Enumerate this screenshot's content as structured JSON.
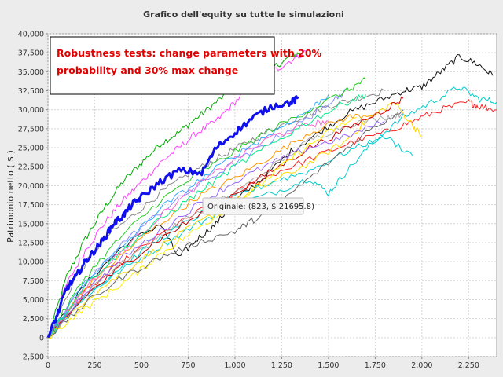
{
  "chart_data": {
    "type": "line",
    "title": "Grafico dell'equity su tutte le simulazioni",
    "xlabel": "",
    "ylabel": "Patrimonio netto ( $ )",
    "xlim": [
      0,
      2400
    ],
    "ylim": [
      -2500,
      40000
    ],
    "x_ticks": [
      0,
      250,
      500,
      750,
      1000,
      1250,
      1500,
      1750,
      2000,
      2250
    ],
    "x_tick_labels": [
      "0",
      "250",
      "500",
      "750",
      "1,000",
      "1,250",
      "1,500",
      "1,750",
      "2,000",
      "2,250"
    ],
    "y_ticks": [
      -2500,
      0,
      2500,
      5000,
      7500,
      10000,
      12500,
      15000,
      17500,
      20000,
      22500,
      25000,
      27500,
      30000,
      32500,
      35000,
      37500,
      40000
    ],
    "y_tick_labels": [
      "-2,500",
      "0",
      "2,500",
      "5,000",
      "7,500",
      "10,000",
      "12,500",
      "15,000",
      "17,500",
      "20,000",
      "22,500",
      "25,000",
      "27,500",
      "30,000",
      "32,500",
      "35,000",
      "37,500",
      "40,000"
    ],
    "grid": true,
    "annotation": {
      "lines": [
        "Robustness tests: change parameters with 20%",
        "probability and 30% max change"
      ],
      "color": "#e00000"
    },
    "tooltip": {
      "text": "Originale: (823, $ 21695.8)",
      "x": 823,
      "y": 21695.8
    },
    "series": [
      {
        "color": "#1010ee",
        "width": 3,
        "values": [
          [
            0,
            0
          ],
          [
            50,
            3000
          ],
          [
            100,
            6500
          ],
          [
            150,
            8000
          ],
          [
            200,
            10000
          ],
          [
            250,
            11500
          ],
          [
            300,
            13000
          ],
          [
            350,
            15000
          ],
          [
            400,
            16000
          ],
          [
            450,
            17500
          ],
          [
            500,
            18500
          ],
          [
            600,
            20500
          ],
          [
            700,
            22000
          ],
          [
            823,
            21695.8
          ],
          [
            900,
            25000
          ],
          [
            1000,
            27000
          ],
          [
            1100,
            29000
          ],
          [
            1200,
            30500
          ],
          [
            1300,
            31000
          ],
          [
            1340,
            31500
          ]
        ]
      },
      {
        "color": "#00aa00",
        "width": 1,
        "values": [
          [
            0,
            0
          ],
          [
            100,
            8000
          ],
          [
            200,
            13000
          ],
          [
            300,
            17000
          ],
          [
            400,
            20500
          ],
          [
            500,
            23000
          ],
          [
            600,
            25500
          ],
          [
            700,
            27000
          ],
          [
            800,
            29000
          ],
          [
            900,
            31000
          ],
          [
            1000,
            33000
          ],
          [
            1100,
            34500
          ],
          [
            1200,
            35500
          ],
          [
            1300,
            37000
          ],
          [
            1350,
            37500
          ]
        ]
      },
      {
        "color": "#ff44ff",
        "width": 1,
        "values": [
          [
            0,
            0
          ],
          [
            100,
            7000
          ],
          [
            200,
            11500
          ],
          [
            300,
            15000
          ],
          [
            400,
            18000
          ],
          [
            500,
            20500
          ],
          [
            600,
            23000
          ],
          [
            700,
            25000
          ],
          [
            800,
            27000
          ],
          [
            900,
            28500
          ],
          [
            1000,
            31000
          ],
          [
            1100,
            33500
          ],
          [
            1200,
            35000
          ],
          [
            1300,
            36500
          ],
          [
            1400,
            38000
          ]
        ]
      },
      {
        "color": "#888888",
        "width": 1,
        "values": [
          [
            0,
            0
          ],
          [
            150,
            8000
          ],
          [
            300,
            13000
          ],
          [
            450,
            16000
          ],
          [
            600,
            19000
          ],
          [
            750,
            21500
          ],
          [
            900,
            23500
          ],
          [
            1050,
            25500
          ],
          [
            1200,
            27500
          ],
          [
            1350,
            29000
          ],
          [
            1500,
            30500
          ],
          [
            1650,
            31500
          ],
          [
            1800,
            32500
          ]
        ]
      },
      {
        "color": "#111111",
        "width": 1,
        "values": [
          [
            0,
            0
          ],
          [
            200,
            7000
          ],
          [
            400,
            12000
          ],
          [
            600,
            15000
          ],
          [
            700,
            10500
          ],
          [
            800,
            13000
          ],
          [
            900,
            15000
          ],
          [
            1000,
            18000
          ],
          [
            1150,
            21000
          ],
          [
            1300,
            24500
          ],
          [
            1450,
            27000
          ],
          [
            1600,
            29500
          ],
          [
            1750,
            31000
          ],
          [
            1900,
            32500
          ],
          [
            2000,
            33000
          ],
          [
            2100,
            35000
          ],
          [
            2200,
            37000
          ],
          [
            2300,
            36000
          ],
          [
            2380,
            34500
          ]
        ]
      },
      {
        "color": "#ff2222",
        "width": 1,
        "values": [
          [
            0,
            0
          ],
          [
            200,
            6000
          ],
          [
            400,
            10000
          ],
          [
            600,
            13500
          ],
          [
            800,
            16500
          ],
          [
            1000,
            19000
          ],
          [
            1200,
            21500
          ],
          [
            1400,
            23500
          ],
          [
            1600,
            25500
          ],
          [
            1800,
            27000
          ],
          [
            1950,
            28500
          ],
          [
            2100,
            30000
          ],
          [
            2250,
            31000
          ],
          [
            2300,
            30500
          ],
          [
            2400,
            30000
          ]
        ]
      },
      {
        "color": "#00cccc",
        "width": 1,
        "values": [
          [
            0,
            0
          ],
          [
            200,
            5500
          ],
          [
            400,
            9000
          ],
          [
            600,
            12000
          ],
          [
            800,
            15000
          ],
          [
            1000,
            17500
          ],
          [
            1200,
            19000
          ],
          [
            1400,
            21000
          ],
          [
            1500,
            19000
          ],
          [
            1600,
            22000
          ],
          [
            1750,
            26000
          ],
          [
            1900,
            29000
          ],
          [
            2050,
            31000
          ],
          [
            2200,
            33000
          ],
          [
            2300,
            31500
          ],
          [
            2400,
            31000
          ]
        ]
      },
      {
        "color": "#ffd800",
        "width": 1,
        "values": [
          [
            0,
            0
          ],
          [
            200,
            5000
          ],
          [
            400,
            8500
          ],
          [
            600,
            12000
          ],
          [
            800,
            15000
          ],
          [
            1000,
            18000
          ],
          [
            1200,
            20500
          ],
          [
            1400,
            23000
          ],
          [
            1600,
            26000
          ],
          [
            1700,
            28500
          ],
          [
            1850,
            31000
          ],
          [
            1950,
            28000
          ],
          [
            2000,
            26500
          ]
        ]
      },
      {
        "color": "#ff9900",
        "width": 1,
        "values": [
          [
            0,
            0
          ],
          [
            200,
            6500
          ],
          [
            400,
            11000
          ],
          [
            600,
            15000
          ],
          [
            800,
            18500
          ],
          [
            1000,
            21000
          ],
          [
            1200,
            24000
          ],
          [
            1400,
            27000
          ],
          [
            1600,
            29000
          ],
          [
            1750,
            29500
          ]
        ]
      },
      {
        "color": "#8888ff",
        "width": 1,
        "values": [
          [
            0,
            0
          ],
          [
            200,
            7000
          ],
          [
            400,
            12500
          ],
          [
            600,
            16500
          ],
          [
            800,
            20000
          ],
          [
            1000,
            23000
          ],
          [
            1200,
            26000
          ],
          [
            1400,
            29000
          ],
          [
            1500,
            31000
          ],
          [
            1600,
            32500
          ]
        ]
      },
      {
        "color": "#aaaaaa",
        "width": 1,
        "values": [
          [
            0,
            0
          ],
          [
            200,
            6000
          ],
          [
            400,
            10000
          ],
          [
            600,
            13500
          ],
          [
            800,
            16500
          ],
          [
            1000,
            19000
          ],
          [
            1200,
            22500
          ],
          [
            1400,
            26000
          ],
          [
            1600,
            28000
          ],
          [
            1800,
            29000
          ],
          [
            1900,
            29500
          ]
        ]
      },
      {
        "color": "#00cccc",
        "width": 1,
        "values": [
          [
            0,
            0
          ],
          [
            200,
            5500
          ],
          [
            400,
            9500
          ],
          [
            600,
            13000
          ],
          [
            800,
            16000
          ],
          [
            1000,
            18500
          ],
          [
            1200,
            20500
          ],
          [
            1400,
            22000
          ],
          [
            1600,
            24500
          ],
          [
            1800,
            26500
          ],
          [
            1950,
            24000
          ]
        ]
      },
      {
        "color": "#22cc22",
        "width": 1,
        "values": [
          [
            0,
            0
          ],
          [
            200,
            8000
          ],
          [
            400,
            13500
          ],
          [
            600,
            18000
          ],
          [
            800,
            21500
          ],
          [
            1000,
            24500
          ],
          [
            1200,
            27500
          ],
          [
            1400,
            30000
          ],
          [
            1600,
            32500
          ],
          [
            1700,
            34000
          ]
        ]
      },
      {
        "color": "#cc0000",
        "width": 1,
        "values": [
          [
            0,
            0
          ],
          [
            200,
            5500
          ],
          [
            400,
            9500
          ],
          [
            600,
            13000
          ],
          [
            800,
            16000
          ],
          [
            1000,
            19000
          ],
          [
            1200,
            22000
          ],
          [
            1400,
            25000
          ],
          [
            1600,
            27500
          ],
          [
            1800,
            30000
          ],
          [
            1900,
            31500
          ]
        ]
      },
      {
        "color": "#ff66cc",
        "width": 1,
        "values": [
          [
            0,
            0
          ],
          [
            200,
            6500
          ],
          [
            400,
            11500
          ],
          [
            600,
            16000
          ],
          [
            800,
            20000
          ],
          [
            1000,
            23500
          ],
          [
            1200,
            26500
          ],
          [
            1400,
            28000
          ],
          [
            1500,
            28500
          ]
        ]
      },
      {
        "color": "#9966ff",
        "width": 1,
        "values": [
          [
            0,
            0
          ],
          [
            200,
            6000
          ],
          [
            400,
            10500
          ],
          [
            600,
            14000
          ],
          [
            800,
            17500
          ],
          [
            1000,
            20500
          ],
          [
            1200,
            23000
          ],
          [
            1400,
            25000
          ],
          [
            1600,
            26500
          ],
          [
            1800,
            28500
          ]
        ]
      },
      {
        "color": "#ffee00",
        "width": 1,
        "values": [
          [
            0,
            0
          ],
          [
            150,
            3000
          ],
          [
            300,
            5500
          ],
          [
            450,
            8000
          ],
          [
            600,
            11000
          ],
          [
            750,
            13500
          ],
          [
            900,
            16000
          ],
          [
            1050,
            18500
          ],
          [
            1200,
            21500
          ],
          [
            1350,
            24500
          ],
          [
            1500,
            27000
          ],
          [
            1650,
            29000
          ]
        ]
      },
      {
        "color": "#33aaff",
        "width": 1,
        "values": [
          [
            0,
            0
          ],
          [
            200,
            7500
          ],
          [
            400,
            12000
          ],
          [
            600,
            17000
          ],
          [
            800,
            20500
          ],
          [
            1000,
            24000
          ],
          [
            1200,
            27000
          ],
          [
            1400,
            30000
          ],
          [
            1500,
            32000
          ]
        ]
      },
      {
        "color": "#666666",
        "width": 1,
        "values": [
          [
            0,
            0
          ],
          [
            200,
            4500
          ],
          [
            400,
            8000
          ],
          [
            600,
            10500
          ],
          [
            800,
            12500
          ],
          [
            1000,
            14000
          ],
          [
            1100,
            15500
          ],
          [
            1300,
            19000
          ],
          [
            1500,
            23000
          ],
          [
            1700,
            27000
          ],
          [
            1900,
            30000
          ]
        ]
      },
      {
        "color": "#00ee88",
        "width": 1,
        "values": [
          [
            0,
            0
          ],
          [
            200,
            7000
          ],
          [
            400,
            11500
          ],
          [
            600,
            15500
          ],
          [
            800,
            19000
          ],
          [
            1000,
            22500
          ],
          [
            1200,
            25500
          ],
          [
            1400,
            28500
          ],
          [
            1600,
            31000
          ],
          [
            1700,
            32000
          ]
        ]
      }
    ]
  }
}
